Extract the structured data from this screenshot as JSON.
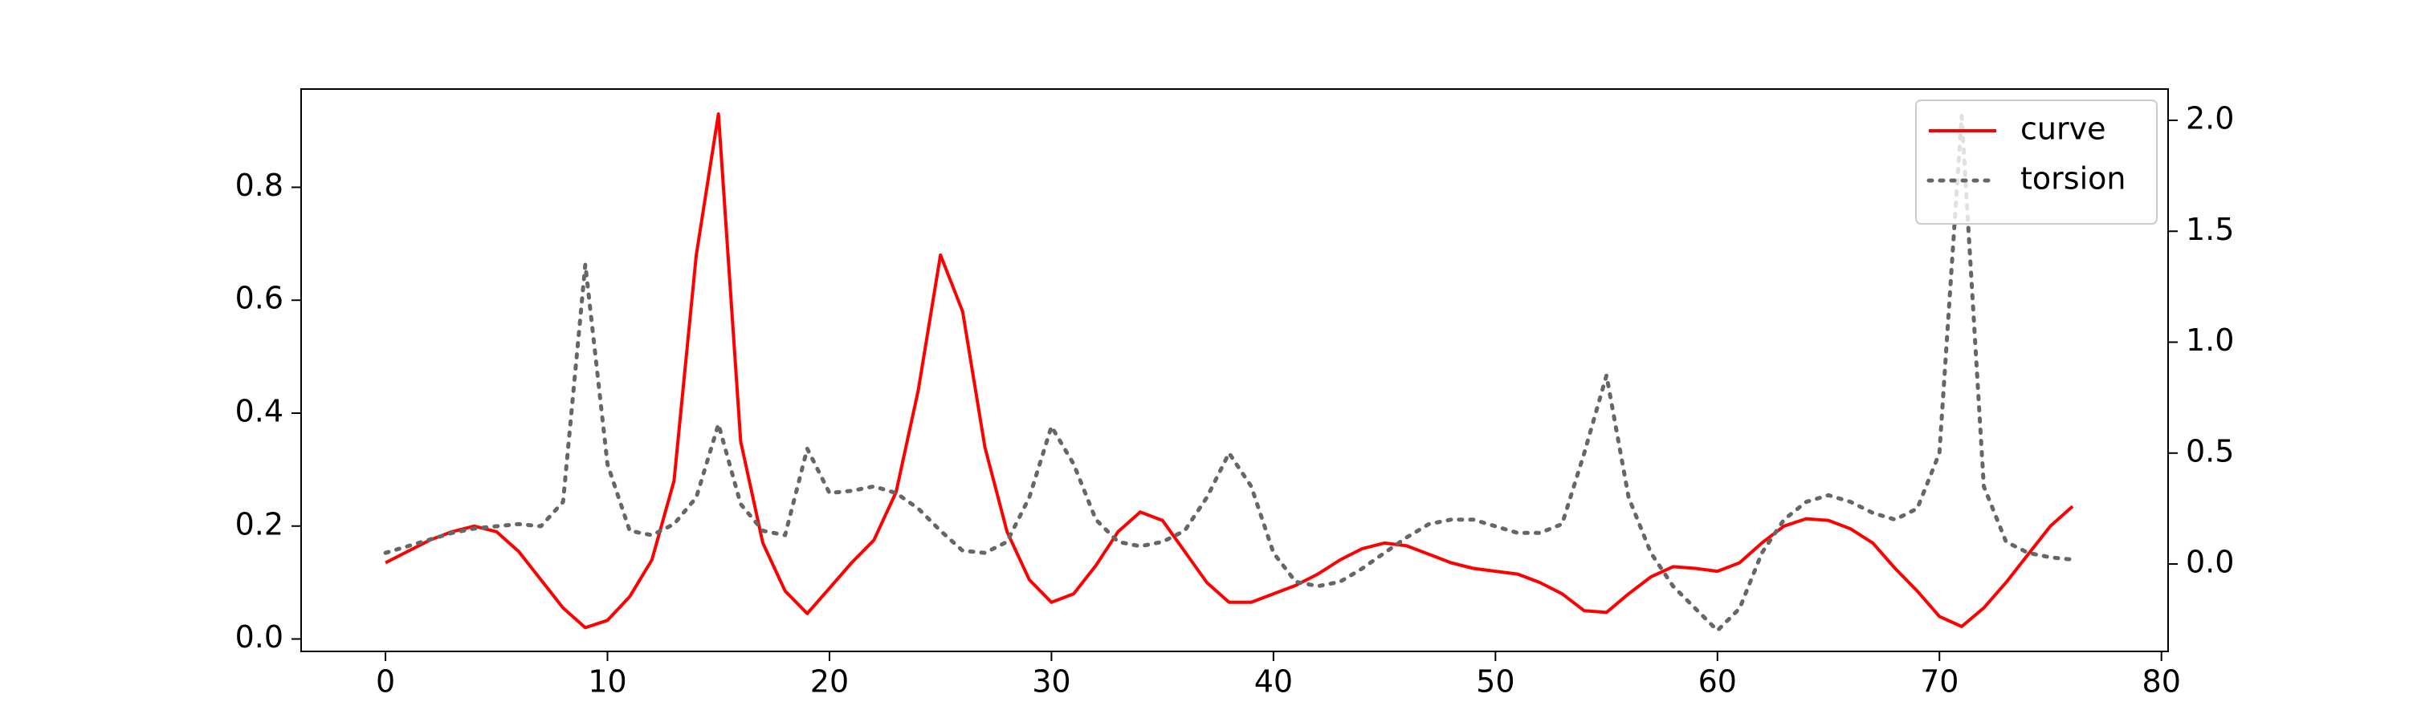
{
  "chart_data": {
    "type": "line",
    "x": [
      0,
      1,
      2,
      3,
      4,
      5,
      6,
      7,
      8,
      9,
      10,
      11,
      12,
      13,
      14,
      15,
      16,
      17,
      18,
      19,
      20,
      21,
      22,
      23,
      24,
      25,
      26,
      27,
      28,
      29,
      30,
      31,
      32,
      33,
      34,
      35,
      36,
      37,
      38,
      39,
      40,
      41,
      42,
      43,
      44,
      45,
      46,
      47,
      48,
      49,
      50,
      51,
      52,
      53,
      54,
      55,
      56,
      57,
      58,
      59,
      60,
      61,
      62,
      63,
      64,
      65,
      66,
      67,
      68,
      69,
      70,
      71,
      72,
      73,
      74,
      75,
      76
    ],
    "series": [
      {
        "name": "curve",
        "color": "#ff0000",
        "style": "solid",
        "values": [
          0.135,
          0.155,
          0.175,
          0.19,
          0.2,
          0.19,
          0.155,
          0.105,
          0.055,
          0.02,
          0.033,
          0.075,
          0.14,
          0.28,
          0.68,
          0.93,
          0.35,
          0.17,
          0.085,
          0.045,
          0.09,
          0.135,
          0.175,
          0.26,
          0.44,
          0.68,
          0.58,
          0.34,
          0.19,
          0.105,
          0.065,
          0.08,
          0.13,
          0.19,
          0.225,
          0.21,
          0.155,
          0.1,
          0.065,
          0.065,
          0.08,
          0.095,
          0.115,
          0.14,
          0.16,
          0.17,
          0.165,
          0.15,
          0.135,
          0.125,
          0.12,
          0.115,
          0.1,
          0.08,
          0.05,
          0.047,
          0.08,
          0.11,
          0.128,
          0.125,
          0.12,
          0.135,
          0.17,
          0.2,
          0.213,
          0.21,
          0.195,
          0.17,
          0.125,
          0.085,
          0.04,
          0.022,
          0.055,
          0.1,
          0.15,
          0.2,
          0.235
        ]
      },
      {
        "name": "torsion",
        "color": "#666666",
        "style": "dotted",
        "axis": "y2",
        "values": [
          0.05,
          0.08,
          0.11,
          0.14,
          0.16,
          0.17,
          0.18,
          0.17,
          0.28,
          1.35,
          0.45,
          0.15,
          0.13,
          0.18,
          0.3,
          0.63,
          0.27,
          0.15,
          0.13,
          0.52,
          0.32,
          0.33,
          0.35,
          0.32,
          0.25,
          0.15,
          0.06,
          0.05,
          0.1,
          0.3,
          0.62,
          0.45,
          0.2,
          0.1,
          0.08,
          0.1,
          0.15,
          0.3,
          0.5,
          0.35,
          0.05,
          -0.08,
          -0.1,
          -0.08,
          -0.02,
          0.05,
          0.12,
          0.18,
          0.2,
          0.2,
          0.17,
          0.14,
          0.14,
          0.18,
          0.5,
          0.85,
          0.3,
          0.05,
          -0.1,
          -0.2,
          -0.3,
          -0.2,
          0.05,
          0.2,
          0.28,
          0.31,
          0.28,
          0.23,
          0.2,
          0.25,
          0.5,
          2.02,
          0.35,
          0.1,
          0.05,
          0.03,
          0.02
        ]
      }
    ],
    "xlim": [
      -3.8,
      80.3
    ],
    "xticks": [
      0,
      10,
      20,
      30,
      40,
      50,
      60,
      70,
      80
    ],
    "ylim": [
      -0.022,
      0.974
    ],
    "yticks": [
      {
        "value": 0,
        "label": "0.0"
      },
      0.2,
      0.4,
      0.6,
      0.8
    ],
    "y2lim": [
      -0.394,
      2.141
    ],
    "y2ticks": [
      {
        "value": 0,
        "label": "0.0"
      },
      0.5,
      {
        "value": 1,
        "label": "1.0"
      },
      1.5,
      {
        "value": 2,
        "label": "2.0"
      }
    ],
    "grid": false,
    "legend": "upper right"
  }
}
